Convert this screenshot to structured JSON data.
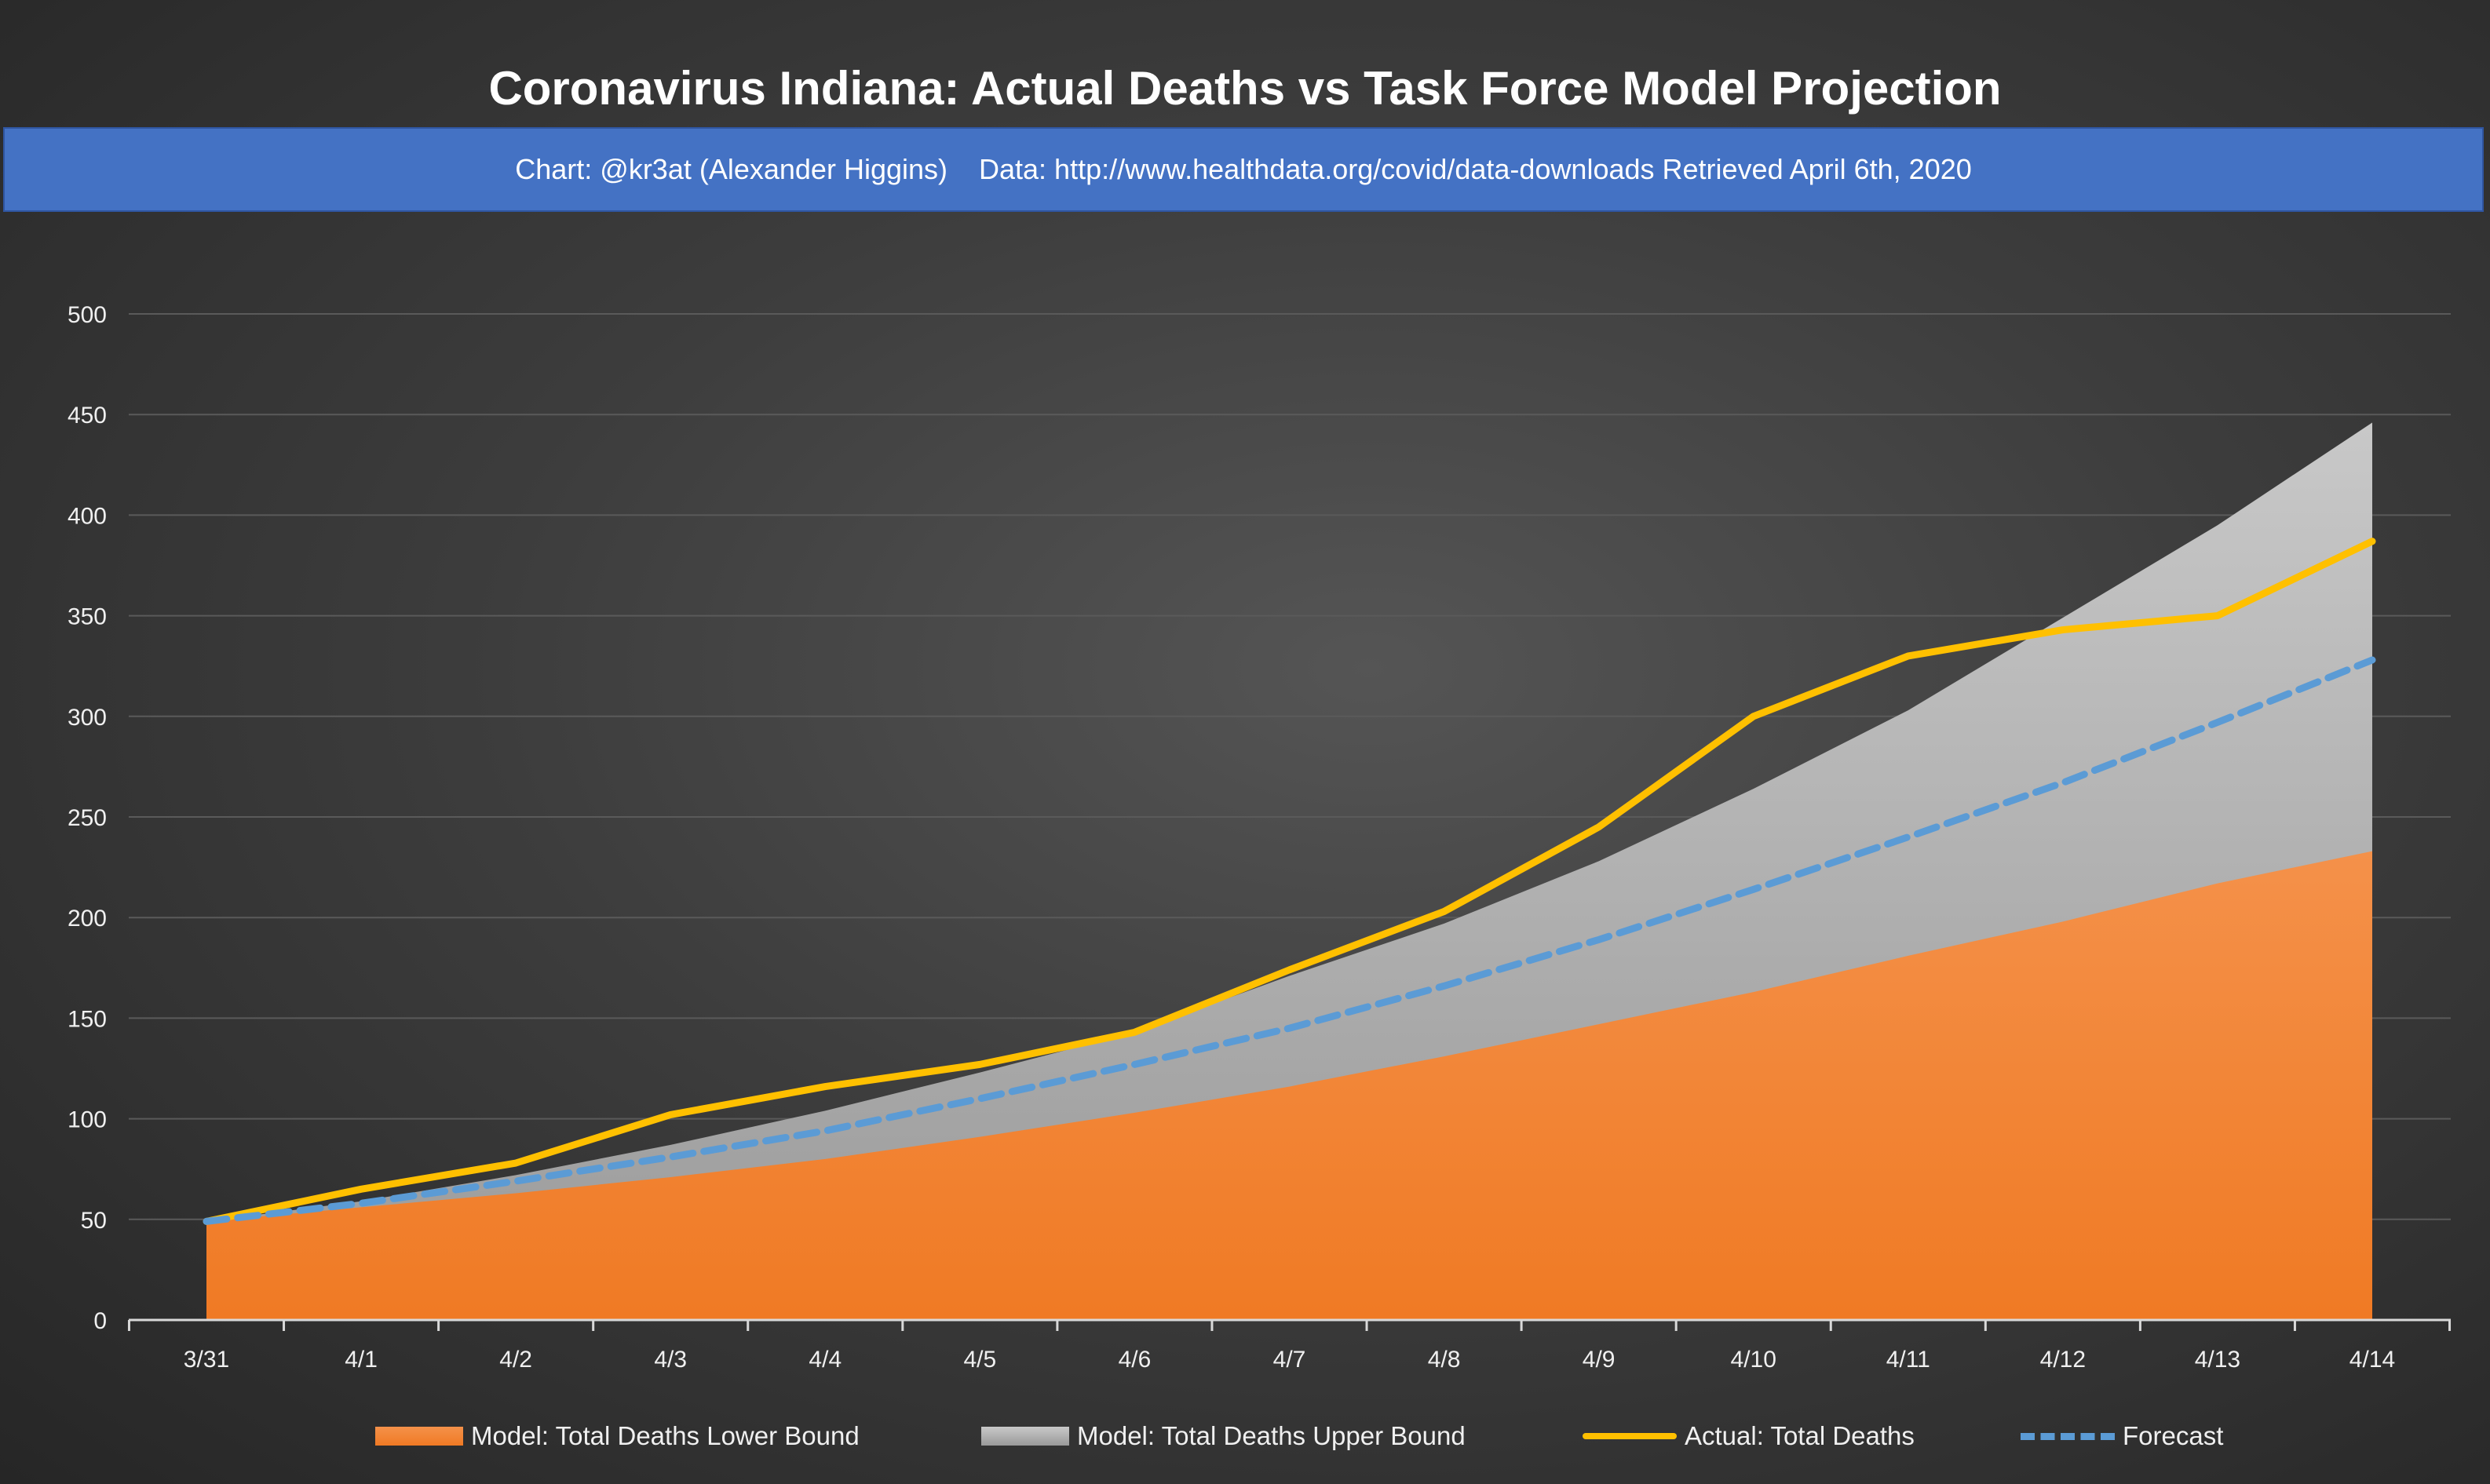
{
  "title": "Coronavirus Indiana: Actual Deaths vs Task Force Model Projection",
  "subtitle": {
    "credit": "Chart: @kr3at (Alexander Higgins)",
    "source": "Data: http://www.healthdata.org/covid/data-downloads Retrieved April 6th, 2020"
  },
  "colors": {
    "lower": "#f28a3c",
    "upper": "#b0b0b0",
    "actual": "#ffc000",
    "forecast": "#5b9bd5",
    "banner": "#4472c4"
  },
  "legend": [
    {
      "key": "lower",
      "label": "Model: Total Deaths Lower Bound"
    },
    {
      "key": "upper",
      "label": "Model: Total Deaths Upper Bound"
    },
    {
      "key": "actual",
      "label": "Actual: Total Deaths"
    },
    {
      "key": "forecast",
      "label": "Forecast"
    }
  ],
  "chart_data": {
    "type": "area",
    "title": "Coronavirus Indiana: Actual Deaths vs Task Force Model Projection",
    "categories": [
      "3/31",
      "4/1",
      "4/2",
      "4/3",
      "4/4",
      "4/5",
      "4/6",
      "4/7",
      "4/8",
      "4/9",
      "4/10",
      "4/11",
      "4/12",
      "4/13",
      "4/14"
    ],
    "ylim": [
      0,
      500
    ],
    "yticks": [
      0,
      50,
      100,
      150,
      200,
      250,
      300,
      350,
      400,
      450,
      500
    ],
    "grid": true,
    "legend_position": "bottom",
    "series": [
      {
        "name": "Model: Total Deaths Lower Bound",
        "kind": "area",
        "values": [
          49,
          56,
          63,
          71,
          80,
          91,
          103,
          116,
          131,
          147,
          163,
          181,
          198,
          217,
          233
        ]
      },
      {
        "name": "Model: Total Deaths Upper Bound",
        "kind": "area",
        "values": [
          49,
          59,
          72,
          87,
          104,
          123,
          143,
          171,
          197,
          228,
          264,
          303,
          349,
          395,
          446
        ]
      },
      {
        "name": "Actual: Total Deaths",
        "kind": "line",
        "values": [
          49,
          65,
          78,
          102,
          116,
          127,
          143,
          174,
          203,
          245,
          300,
          330,
          343,
          350,
          387
        ]
      },
      {
        "name": "Forecast",
        "kind": "dashed-line",
        "values": [
          49,
          58,
          69,
          81,
          94,
          110,
          127,
          145,
          166,
          189,
          214,
          240,
          267,
          297,
          328
        ]
      }
    ]
  }
}
